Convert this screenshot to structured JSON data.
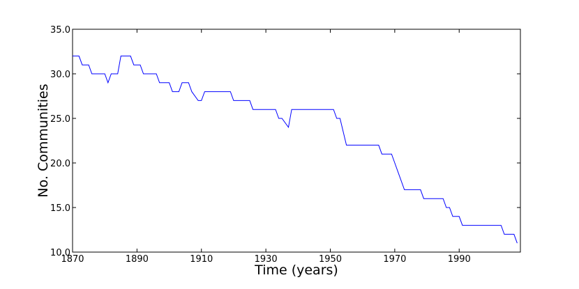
{
  "chart_data": {
    "type": "line",
    "title": "",
    "xlabel": "Time (years)",
    "ylabel": "No. Communities",
    "xlim": [
      1870,
      2009
    ],
    "ylim": [
      10.0,
      35.0
    ],
    "x_ticks": [
      1870,
      1890,
      1910,
      1930,
      1950,
      1970,
      1990
    ],
    "x_tick_labels": [
      "1870",
      "1890",
      "1910",
      "1930",
      "1950",
      "1970",
      "1990"
    ],
    "y_ticks": [
      10.0,
      15.0,
      20.0,
      25.0,
      30.0,
      35.0
    ],
    "y_tick_labels": [
      "10.0",
      "15.0",
      "20.0",
      "25.0",
      "30.0",
      "35.0"
    ],
    "grid": false,
    "line_color": "#0000ff",
    "series": [
      {
        "x": [
          1870,
          1872,
          1873,
          1875,
          1876,
          1880,
          1881,
          1882,
          1884,
          1885,
          1888,
          1889,
          1891,
          1892,
          1896,
          1897,
          1900,
          1901,
          1903,
          1904,
          1906,
          1907,
          1909,
          1910,
          1911,
          1919,
          1920,
          1925,
          1926,
          1933,
          1934,
          1935,
          1937,
          1938,
          1951,
          1952,
          1953,
          1955,
          1956,
          1965,
          1966,
          1969,
          1970,
          1971,
          1973,
          1974,
          1978,
          1979,
          1985,
          1986,
          1987,
          1988,
          1990,
          1991,
          2003,
          2004,
          2007,
          2008
        ],
        "y": [
          32,
          32,
          31,
          31,
          30,
          30,
          29,
          30,
          30,
          32,
          32,
          31,
          31,
          30,
          30,
          29,
          29,
          28,
          28,
          29,
          29,
          28,
          27,
          27,
          28,
          28,
          27,
          27,
          26,
          26,
          25,
          25,
          24,
          26,
          26,
          25,
          25,
          22,
          22,
          22,
          21,
          21,
          20,
          19,
          17,
          17,
          17,
          16,
          16,
          15,
          15,
          14,
          14,
          13,
          13,
          12,
          12,
          11
        ]
      }
    ]
  }
}
